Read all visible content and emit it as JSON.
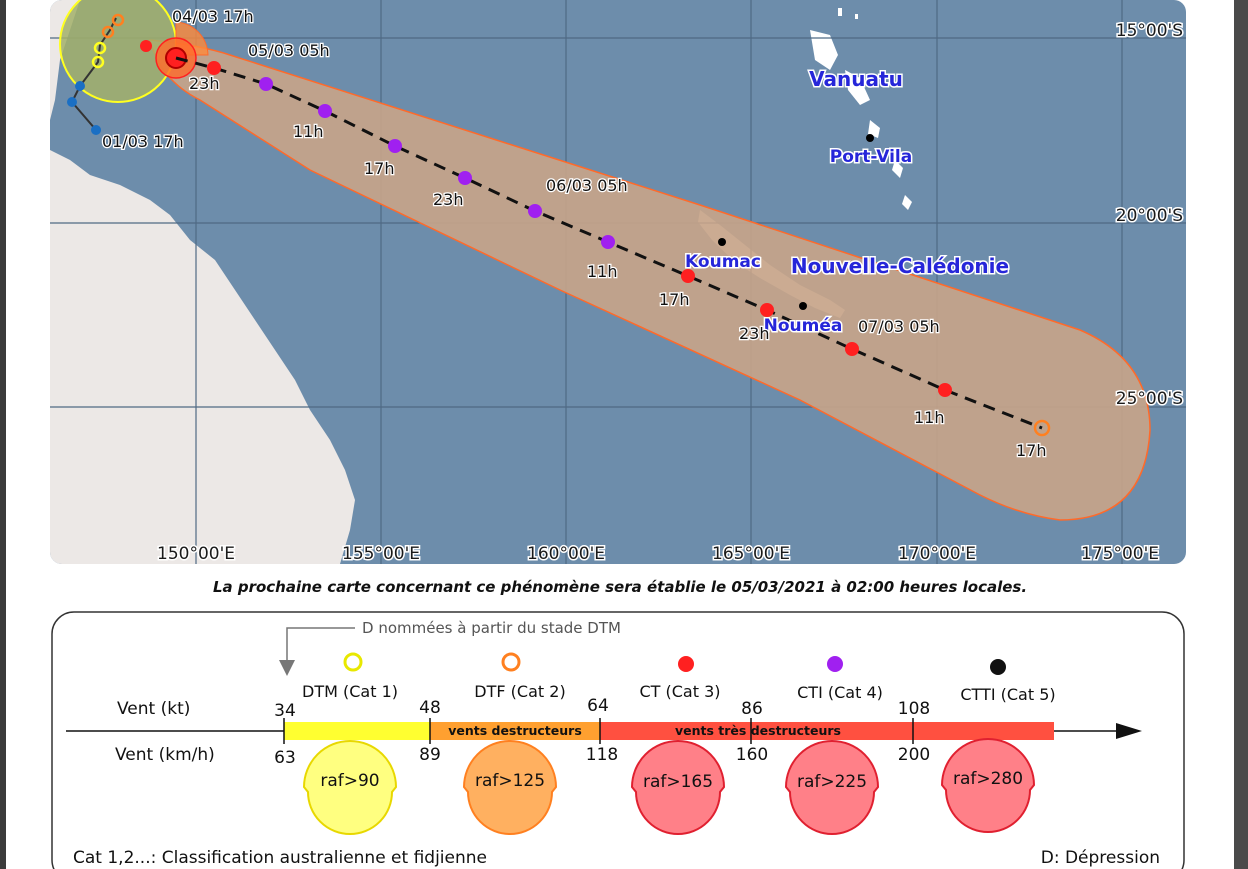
{
  "map": {
    "lat_labels": [
      "15°00'S",
      "20°00'S",
      "25°00'S"
    ],
    "lon_labels": [
      "150°00'E",
      "155°00'E",
      "160°00'E",
      "165°00'E",
      "170°00'E",
      "175°00'E"
    ],
    "places": [
      {
        "name": "Vanuatu",
        "kind": "country"
      },
      {
        "name": "Port-Vila",
        "kind": "city"
      },
      {
        "name": "Nouvelle-Calédonie",
        "kind": "country"
      },
      {
        "name": "Koumac",
        "kind": "city"
      },
      {
        "name": "Nouméa",
        "kind": "city"
      }
    ],
    "track_labels": [
      "04/03 17h",
      "05/03 05h",
      "23h",
      "01/03 17h",
      "11h",
      "17h",
      "23h",
      "06/03 05h",
      "11h",
      "17h",
      "23h",
      "07/03 05h",
      "11h",
      "17h"
    ],
    "colors": {
      "ocean": "#6d8dab",
      "land": "#ece8e6",
      "cone": "#c8a488",
      "ct": "#ff2020",
      "cti": "#a020f0",
      "dtf": "#ff8020",
      "dtm": "#ffff20",
      "depression": "#1a6fc4"
    }
  },
  "notice": "La prochaine carte concernant ce phénomène sera établie le 05/03/2021 à 02:00 heures locales.",
  "legend": {
    "d_note": "D nommées à partir du stade DTM",
    "wind_kt_label": "Vent (kt)",
    "wind_kmh_label": "Vent (km/h)",
    "kt_ticks": [
      "34",
      "48",
      "64",
      "86",
      "108"
    ],
    "kmh_ticks": [
      "63",
      "89",
      "118",
      "160",
      "200"
    ],
    "categories": [
      "DTM (Cat 1)",
      "DTF (Cat 2)",
      "CT (Cat 3)",
      "CTI (Cat 4)",
      "CTTI (Cat 5)"
    ],
    "gusts": [
      "raf>90",
      "raf>125",
      "raf>165",
      "raf>225",
      "raf>280"
    ],
    "band_labels": [
      "vents destructeurs",
      "vents très destructeurs"
    ],
    "footer_left": "Cat 1,2...: Classification australienne et fidjienne",
    "footer_right": "D: Dépression"
  }
}
